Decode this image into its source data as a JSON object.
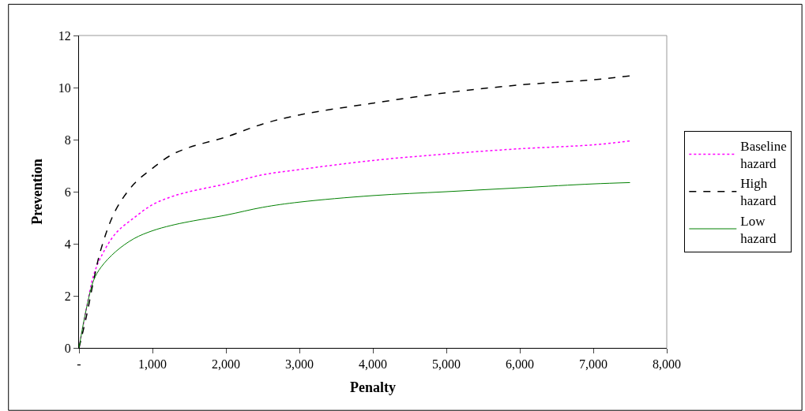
{
  "chart_data": {
    "type": "line",
    "xlabel": "Penalty",
    "ylabel": "Prevention",
    "x": [
      0,
      100,
      200,
      300,
      500,
      750,
      1000,
      1250,
      1500,
      2000,
      2500,
      3000,
      4000,
      5000,
      6000,
      7000,
      7500
    ],
    "series": [
      {
        "name": "Baseline hazard",
        "color": "#ff00ff",
        "line_style": "dotted",
        "values": [
          0,
          1.5,
          2.8,
          3.5,
          4.4,
          5.0,
          5.5,
          5.8,
          6.0,
          6.3,
          6.65,
          6.85,
          7.2,
          7.45,
          7.65,
          7.8,
          7.95
        ]
      },
      {
        "name": "High hazard",
        "color": "#000000",
        "line_style": "dashed",
        "values": [
          0,
          1.2,
          2.6,
          3.8,
          5.3,
          6.3,
          6.9,
          7.4,
          7.7,
          8.1,
          8.6,
          8.95,
          9.4,
          9.8,
          10.1,
          10.3,
          10.45
        ]
      },
      {
        "name": "Low hazard",
        "color": "#008000",
        "line_style": "solid",
        "values": [
          0,
          1.5,
          2.6,
          3.1,
          3.7,
          4.2,
          4.5,
          4.7,
          4.85,
          5.1,
          5.4,
          5.6,
          5.85,
          6.0,
          6.15,
          6.3,
          6.35
        ]
      }
    ],
    "xlim": [
      0,
      8000
    ],
    "ylim": [
      0,
      12
    ],
    "xticks": [
      {
        "value": 0,
        "label": "-"
      },
      {
        "value": 1000,
        "label": "1,000"
      },
      {
        "value": 2000,
        "label": "2,000"
      },
      {
        "value": 3000,
        "label": "3,000"
      },
      {
        "value": 4000,
        "label": "4,000"
      },
      {
        "value": 5000,
        "label": "5,000"
      },
      {
        "value": 6000,
        "label": "6,000"
      },
      {
        "value": 7000,
        "label": "7,000"
      },
      {
        "value": 8000,
        "label": "8,000"
      }
    ],
    "yticks": [
      0,
      2,
      4,
      6,
      8,
      10,
      12
    ],
    "legend": "right",
    "marker": "none"
  }
}
